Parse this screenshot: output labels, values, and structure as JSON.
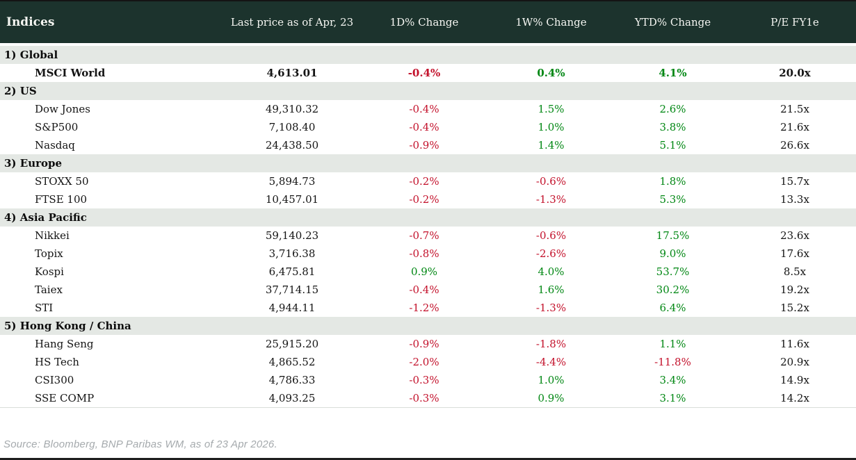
{
  "table": {
    "title": "Indices",
    "columns": [
      "Indices",
      "Last price as of Apr, 23",
      "1D% Change",
      "1W% Change",
      "YTD% Change",
      "P/E FY1e"
    ],
    "sections": [
      {
        "label": "1) Global",
        "rows": [
          {
            "name": "MSCI World",
            "price": "4,613.01",
            "d1": "-0.4%",
            "w1": "0.4%",
            "ytd": "4.1%",
            "pe": "20.0x"
          }
        ]
      },
      {
        "label": "2) US",
        "rows": [
          {
            "name": "Dow Jones",
            "price": "49,310.32",
            "d1": "-0.4%",
            "w1": "1.5%",
            "ytd": "2.6%",
            "pe": "21.5x"
          },
          {
            "name": "S&P500",
            "price": "7,108.40",
            "d1": "-0.4%",
            "w1": "1.0%",
            "ytd": "3.8%",
            "pe": "21.6x"
          },
          {
            "name": "Nasdaq",
            "price": "24,438.50",
            "d1": "-0.9%",
            "w1": "1.4%",
            "ytd": "5.1%",
            "pe": "26.6x"
          }
        ]
      },
      {
        "label": "3) Europe",
        "rows": [
          {
            "name": "STOXX 50",
            "price": "5,894.73",
            "d1": "-0.2%",
            "w1": "-0.6%",
            "ytd": "1.8%",
            "pe": "15.7x"
          },
          {
            "name": "FTSE 100",
            "price": "10,457.01",
            "d1": "-0.2%",
            "w1": "-1.3%",
            "ytd": "5.3%",
            "pe": "13.3x"
          }
        ]
      },
      {
        "label": "4) Asia Pacific",
        "rows": [
          {
            "name": "Nikkei",
            "price": "59,140.23",
            "d1": "-0.7%",
            "w1": "-0.6%",
            "ytd": "17.5%",
            "pe": "23.6x"
          },
          {
            "name": "Topix",
            "price": "3,716.38",
            "d1": "-0.8%",
            "w1": "-2.6%",
            "ytd": "9.0%",
            "pe": "17.6x"
          },
          {
            "name": "Kospi",
            "price": "6,475.81",
            "d1": "0.9%",
            "w1": "4.0%",
            "ytd": "53.7%",
            "pe": "8.5x"
          },
          {
            "name": "Taiex",
            "price": "37,714.15",
            "d1": "-0.4%",
            "w1": "1.6%",
            "ytd": "30.2%",
            "pe": "19.2x"
          },
          {
            "name": "STI",
            "price": "4,944.11",
            "d1": "-1.2%",
            "w1": "-1.3%",
            "ytd": "6.4%",
            "pe": "15.2x"
          }
        ]
      },
      {
        "label": "5) Hong Kong / China",
        "rows": [
          {
            "name": "Hang Seng",
            "price": "25,915.20",
            "d1": "-0.9%",
            "w1": "-1.8%",
            "ytd": "1.1%",
            "pe": "11.6x"
          },
          {
            "name": "HS Tech",
            "price": "4,865.52",
            "d1": "-2.0%",
            "w1": "-4.4%",
            "ytd": "-11.8%",
            "pe": "20.9x"
          },
          {
            "name": "CSI300",
            "price": "4,786.33",
            "d1": "-0.3%",
            "w1": "1.0%",
            "ytd": "3.4%",
            "pe": "14.9x"
          },
          {
            "name": "SSE COMP",
            "price": "4,093.25",
            "d1": "-0.3%",
            "w1": "0.9%",
            "ytd": "3.1%",
            "pe": "14.2x"
          }
        ]
      }
    ]
  },
  "footer": {
    "source": "Source: Bloomberg, BNP Paribas WM, as of 23 Apr 2026."
  },
  "colors": {
    "header_bg": "#1c332d",
    "header_text": "#f5f6f2",
    "section_bg": "#e4e8e4",
    "positive": "#008713",
    "negative": "#c3112b"
  }
}
